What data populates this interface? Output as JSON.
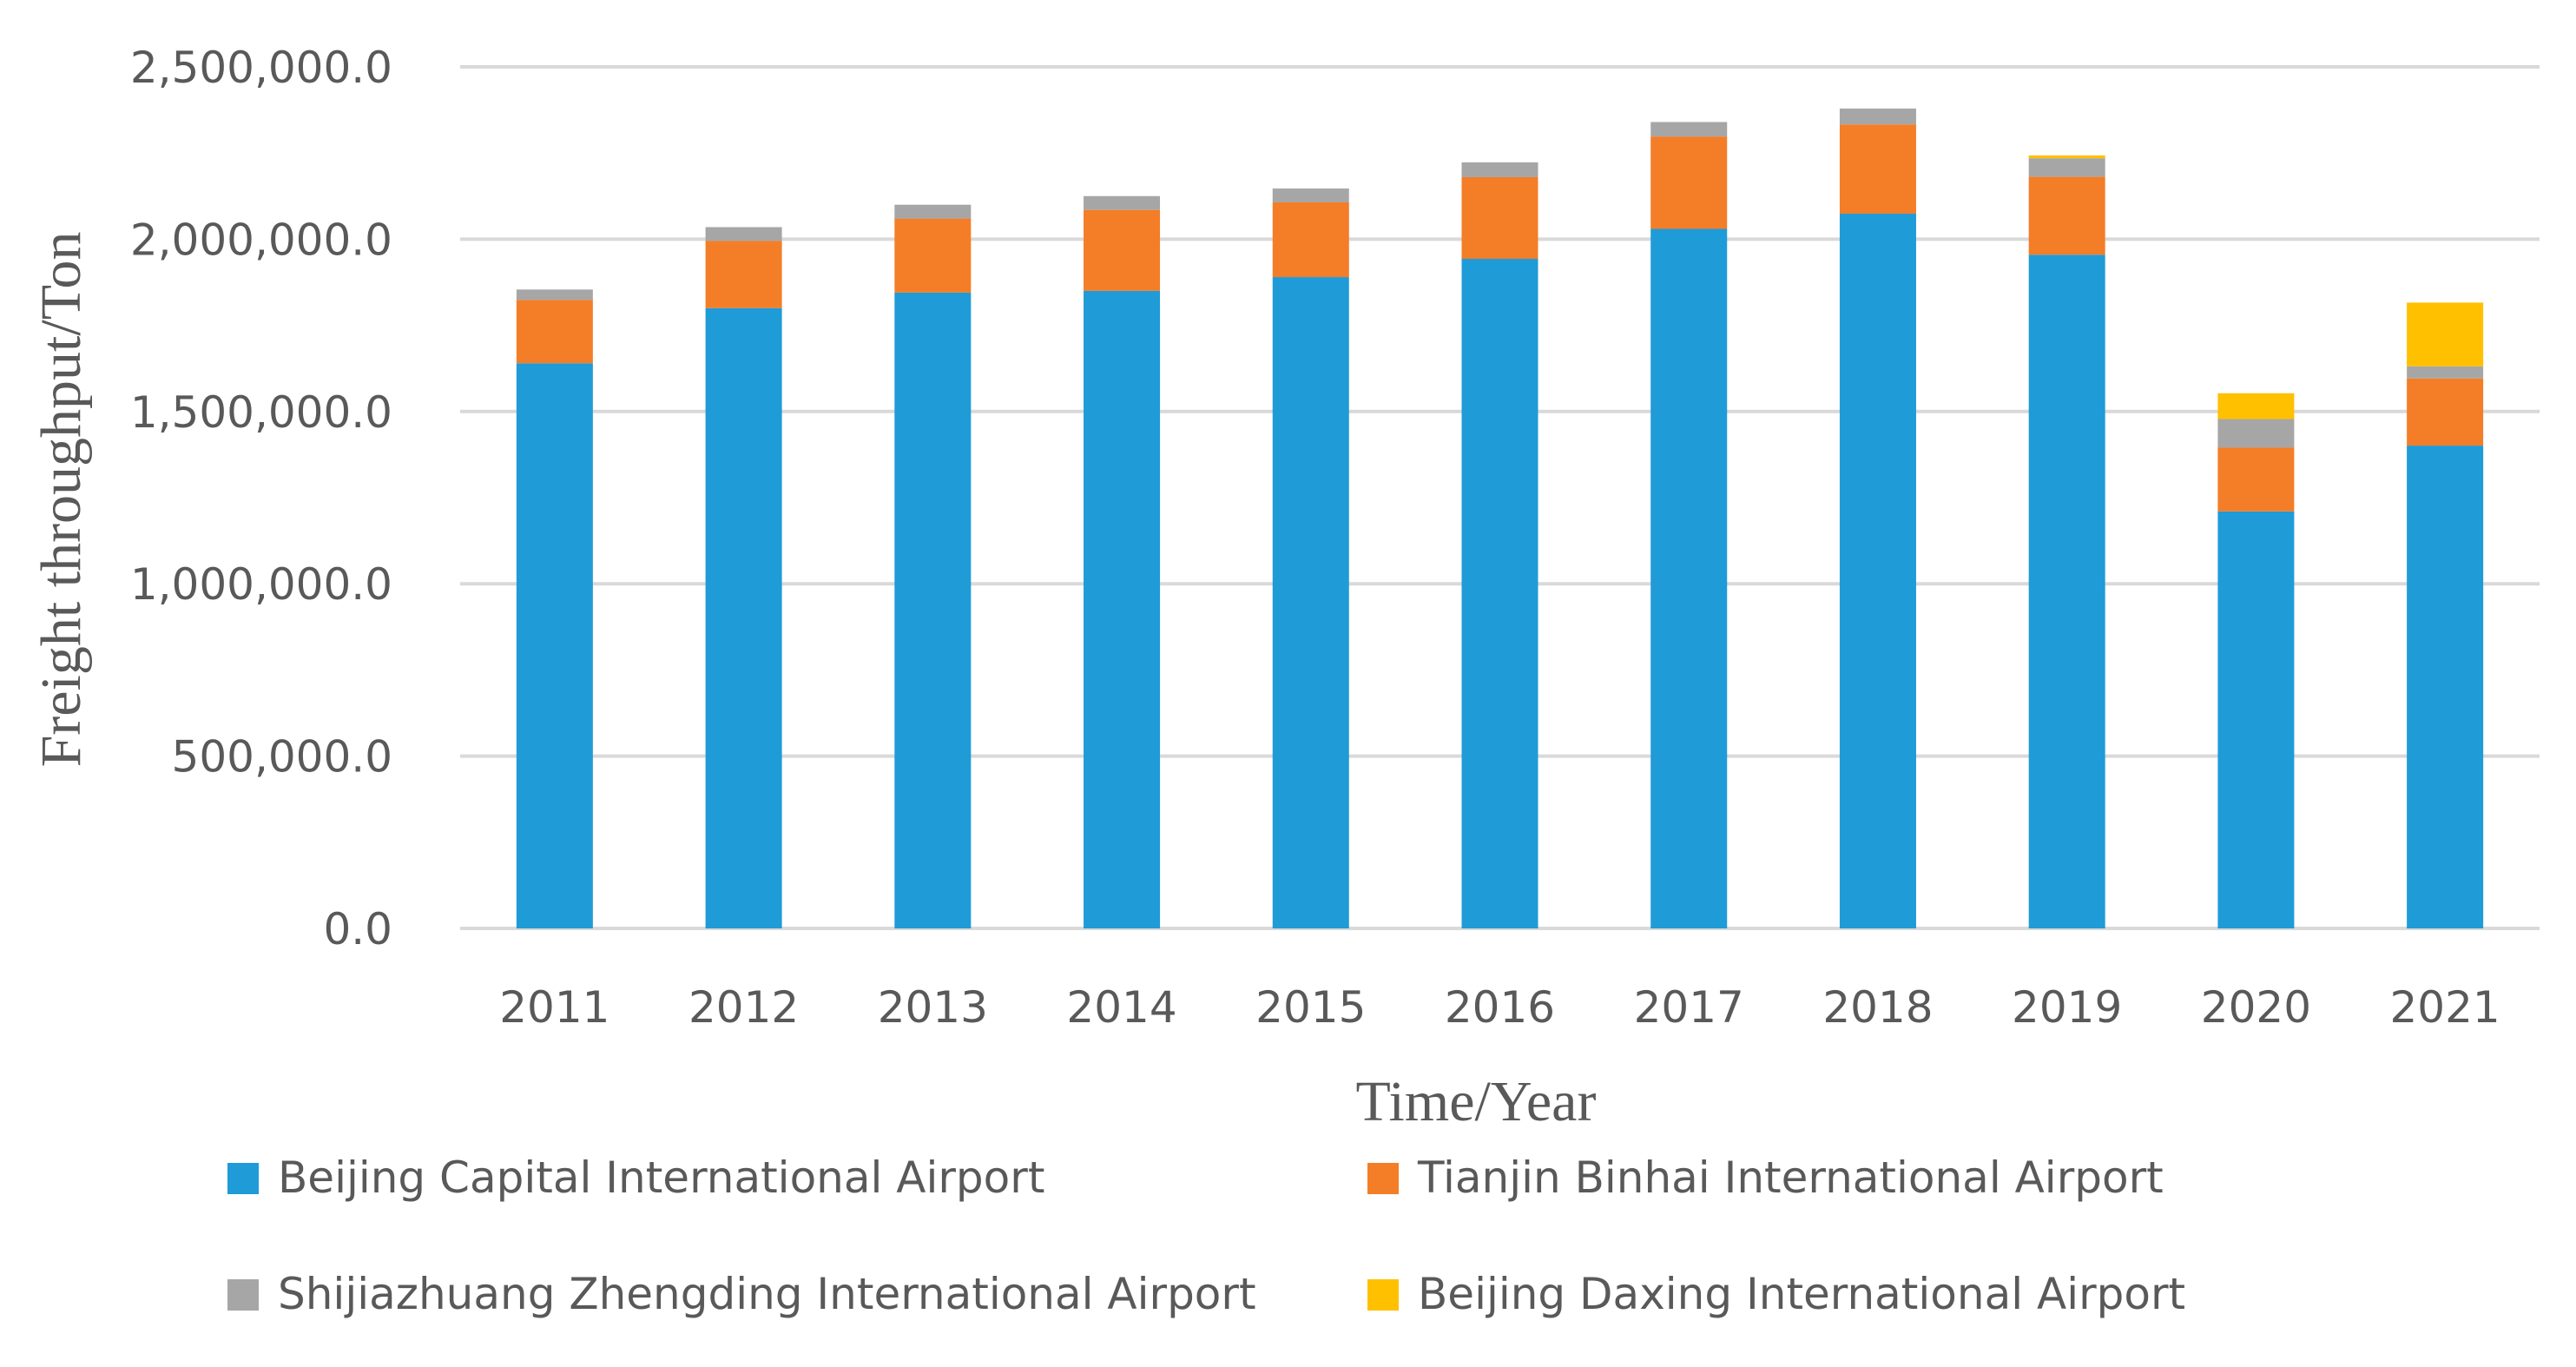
{
  "chart_data": {
    "type": "bar",
    "stacked": true,
    "title": "",
    "xlabel": "Time/Year",
    "ylabel": "Freight throughput/Ton",
    "ylim": [
      0,
      2500000
    ],
    "y_ticks": [
      0,
      500000,
      1000000,
      1500000,
      2000000,
      2500000
    ],
    "y_tick_labels": [
      "0.0",
      "500,000.0",
      "1,000,000.0",
      "1,500,000.0",
      "2,000,000.0",
      "2,500,000.0"
    ],
    "grid": true,
    "legend_position": "bottom",
    "categories": [
      "2011",
      "2012",
      "2013",
      "2014",
      "2015",
      "2016",
      "2017",
      "2018",
      "2019",
      "2020",
      "2021"
    ],
    "series": [
      {
        "name": "Beijing Capital International Airport",
        "color": "#1f9bd7",
        "values": [
          1640000,
          1800000,
          1845000,
          1850000,
          1890000,
          1943000,
          2030000,
          2074000,
          1955000,
          1210000,
          1401000
        ]
      },
      {
        "name": "Tianjin Binhai International Airport",
        "color": "#f47d28",
        "values": [
          184000,
          195000,
          215000,
          235000,
          217000,
          237000,
          268000,
          259000,
          226000,
          185000,
          195000
        ]
      },
      {
        "name": "Shijiazhuang Zhengding International Airport",
        "color": "#a6a6a6",
        "values": [
          30000,
          40000,
          40000,
          40000,
          40000,
          43000,
          42000,
          46000,
          54000,
          83000,
          35000
        ]
      },
      {
        "name": "Beijing Daxing International Airport",
        "color": "#ffc000",
        "values": [
          0,
          0,
          0,
          0,
          0,
          0,
          0,
          0,
          8000,
          75000,
          185000
        ]
      }
    ]
  }
}
